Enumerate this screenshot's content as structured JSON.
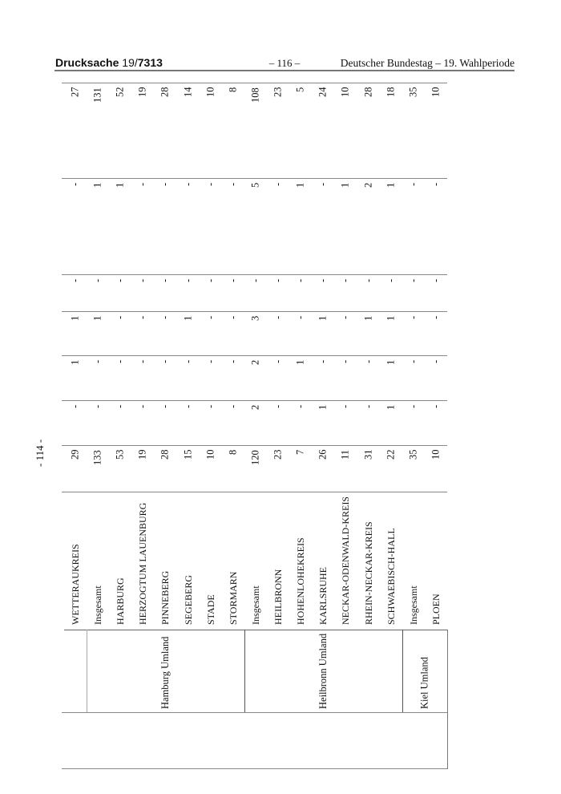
{
  "header": {
    "doc_label": "Drucksache",
    "doc_number_prefix": "19/",
    "doc_number": "7313",
    "page": "– 116 –",
    "publisher": "Deutscher Bundestag – 19. Wahlperiode"
  },
  "side_page_number": "- 114 -",
  "table": {
    "regions": [
      {
        "label": "",
        "start": 0,
        "span": 1
      },
      {
        "label": "Hamburg Umland",
        "start": 1,
        "span": 7
      },
      {
        "label": "Heilbronn Umland",
        "start": 8,
        "span": 7
      },
      {
        "label": "Kiel Umland",
        "start": 15,
        "span": 2
      }
    ],
    "rows": [
      {
        "name": "WETTERAUKREIS",
        "values": [
          "29",
          "-",
          "1",
          "1",
          "-",
          "-",
          "27"
        ]
      },
      {
        "name": "Insgesamt",
        "values": [
          "133",
          "-",
          "-",
          "1",
          "-",
          "1",
          "131"
        ]
      },
      {
        "name": "HARBURG",
        "values": [
          "53",
          "-",
          "-",
          "-",
          "-",
          "1",
          "52"
        ]
      },
      {
        "name": "HERZOGTUM LAUENBURG",
        "values": [
          "19",
          "-",
          "-",
          "-",
          "-",
          "-",
          "19"
        ]
      },
      {
        "name": "PINNEBERG",
        "values": [
          "28",
          "-",
          "-",
          "-",
          "-",
          "-",
          "28"
        ]
      },
      {
        "name": "SEGEBERG",
        "values": [
          "15",
          "-",
          "-",
          "1",
          "-",
          "-",
          "14"
        ]
      },
      {
        "name": "STADE",
        "values": [
          "10",
          "-",
          "-",
          "-",
          "-",
          "-",
          "10"
        ]
      },
      {
        "name": "STORMARN",
        "values": [
          "8",
          "-",
          "-",
          "-",
          "-",
          "-",
          "8"
        ]
      },
      {
        "name": "Insgesamt",
        "values": [
          "120",
          "2",
          "2",
          "3",
          "-",
          "5",
          "108"
        ]
      },
      {
        "name": "HEILBRONN",
        "values": [
          "23",
          "-",
          "-",
          "-",
          "-",
          "-",
          "23"
        ]
      },
      {
        "name": "HOHENLOHEKREIS",
        "values": [
          "7",
          "-",
          "1",
          "-",
          "-",
          "1",
          "5"
        ]
      },
      {
        "name": "KARLSRUHE",
        "values": [
          "26",
          "1",
          "-",
          "1",
          "-",
          "-",
          "24"
        ]
      },
      {
        "name": "NECKAR-ODENWALD-KREIS",
        "values": [
          "11",
          "-",
          "-",
          "-",
          "-",
          "1",
          "10"
        ]
      },
      {
        "name": "RHEIN-NECKAR-KREIS",
        "values": [
          "31",
          "-",
          "-",
          "1",
          "-",
          "2",
          "28"
        ]
      },
      {
        "name": "SCHWAEBISCH-HALL",
        "values": [
          "22",
          "1",
          "1",
          "1",
          "-",
          "1",
          "18"
        ]
      },
      {
        "name": "Insgesamt",
        "values": [
          "35",
          "-",
          "-",
          "-",
          "-",
          "-",
          "35"
        ]
      },
      {
        "name": "PLOEN",
        "values": [
          "10",
          "-",
          "-",
          "-",
          "-",
          "-",
          "10"
        ]
      }
    ]
  }
}
